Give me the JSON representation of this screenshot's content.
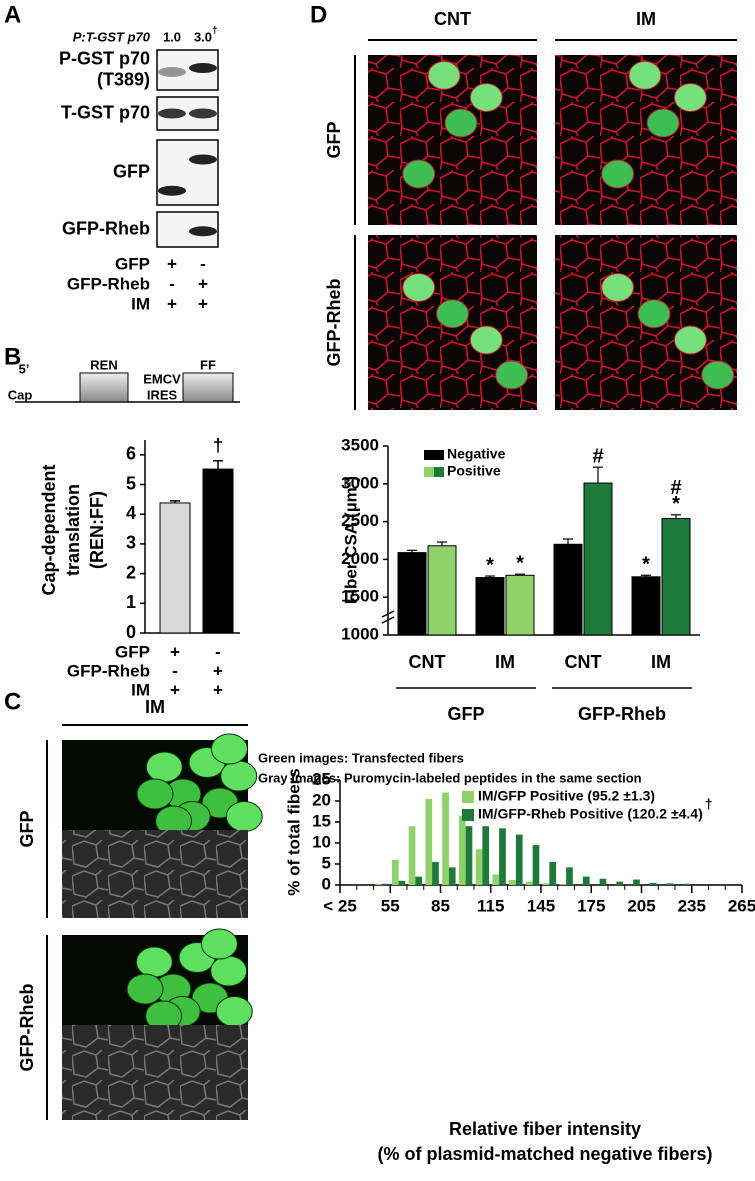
{
  "panel_a": {
    "label": "A",
    "ratio_label": "P:T-GST p70",
    "ratios": [
      "1.0",
      "3.0"
    ],
    "ratio_note": "†",
    "blots": [
      [
        "P-GST p70",
        "(T389)"
      ],
      [
        "T-GST p70"
      ],
      [
        "GFP"
      ],
      [
        "GFP-Rheb"
      ]
    ],
    "conditions": [
      {
        "name": "GFP",
        "lanes": [
          "+",
          "-"
        ]
      },
      {
        "name": "GFP-Rheb",
        "lanes": [
          "-",
          "+"
        ]
      },
      {
        "name": "IM",
        "lanes": [
          "+",
          "+"
        ]
      }
    ]
  },
  "panel_b": {
    "label": "B",
    "construct": [
      "5’",
      "Cap",
      "REN",
      "EMCV",
      "IRES",
      "FF"
    ],
    "conditions": [
      {
        "name": "GFP",
        "lanes": [
          "+",
          "-"
        ]
      },
      {
        "name": "GFP-Rheb",
        "lanes": [
          "-",
          "+"
        ]
      },
      {
        "name": "IM",
        "lanes": [
          "+",
          "+"
        ]
      }
    ]
  },
  "panel_c": {
    "label": "C",
    "column": "IM",
    "rows": [
      "GFP",
      "GFP-Rheb"
    ],
    "notes": [
      "Green images: Transfected fibers",
      "Gray images: Puromycin-labeled peptides in the same section"
    ]
  },
  "panel_d": {
    "label": "D",
    "columns": [
      "CNT",
      "IM"
    ],
    "rows": [
      "GFP",
      "GFP-Rheb"
    ]
  },
  "chart_data": [
    {
      "type": "bar",
      "ylabel": [
        "Cap-dependent",
        "translation",
        "(REN:FF)"
      ],
      "values": [
        4.38,
        5.52
      ],
      "errors": [
        0.07,
        0.28
      ],
      "colors": [
        "#d9d9d9",
        "#000000"
      ],
      "annotations": [
        null,
        "†"
      ],
      "ylim": [
        0,
        6.5
      ],
      "yticks": [
        0,
        1,
        2,
        3,
        4,
        5,
        6
      ]
    },
    {
      "type": "grouped_bar",
      "ylabel": "Fiber CSA (µm²)",
      "categories": [
        "CNT",
        "IM",
        "CNT",
        "IM"
      ],
      "groups": [
        "GFP",
        "GFP-Rheb"
      ],
      "series": [
        {
          "name": "Negative",
          "color": "#000000",
          "values": [
            2090,
            1760,
            2200,
            1770
          ],
          "errors": [
            30,
            20,
            70,
            20
          ],
          "annotations": [
            [],
            [
              "*"
            ],
            [],
            [
              "*"
            ]
          ]
        },
        {
          "name": "Positive",
          "colors": [
            "#8fd16a",
            "#8fd16a",
            "#1e7a3a",
            "#1e7a3a"
          ],
          "values": [
            2180,
            1790,
            3010,
            2540
          ],
          "errors": [
            50,
            15,
            210,
            50
          ],
          "annotations": [
            [],
            [
              "*"
            ],
            [
              "#"
            ],
            [
              "#",
              "*"
            ]
          ]
        }
      ],
      "ylim": [
        1000,
        3500
      ],
      "yticks": [
        1000,
        1500,
        2000,
        2500,
        3000,
        3500
      ],
      "axis_break": true
    },
    {
      "type": "histogram",
      "ylabel": "% of total fibers",
      "xlabel": [
        "Relative fiber intensity",
        "(% of plasmid-matched negative fibers)"
      ],
      "bins": [
        25,
        35,
        45,
        55,
        65,
        75,
        85,
        95,
        105,
        115,
        125,
        135,
        145,
        155,
        165,
        175,
        185,
        195,
        205,
        215,
        225,
        235,
        245,
        255,
        265
      ],
      "series": [
        {
          "name": "IM/GFP Positive (95.2 ±1.3)",
          "color": "#8fd16a",
          "values": [
            0,
            0,
            0.3,
            6,
            14,
            20.5,
            22,
            16.5,
            8.5,
            2.5,
            1.2,
            0.8,
            0.4,
            0.2,
            0,
            0,
            0,
            0,
            0,
            0,
            0,
            0,
            0,
            0
          ]
        },
        {
          "name": "IM/GFP-Rheb Positive (120.2 ±4.4)",
          "color": "#1e7a3a",
          "values": [
            0,
            0,
            0.3,
            1,
            2,
            5.5,
            4.2,
            14,
            14,
            13.5,
            12,
            9.5,
            5.5,
            4.2,
            2,
            1.5,
            0.8,
            1.3,
            0.5,
            0.4,
            0.3,
            0,
            0,
            0
          ]
        }
      ],
      "legend_note": "†",
      "xlim": [
        25,
        265
      ],
      "xticks": [
        {
          "value": 25,
          "label": "< 25"
        },
        55,
        85,
        115,
        145,
        175,
        205,
        235,
        265
      ],
      "ylim": [
        0,
        25
      ],
      "yticks": [
        0,
        5,
        10,
        15,
        20,
        25
      ]
    }
  ]
}
